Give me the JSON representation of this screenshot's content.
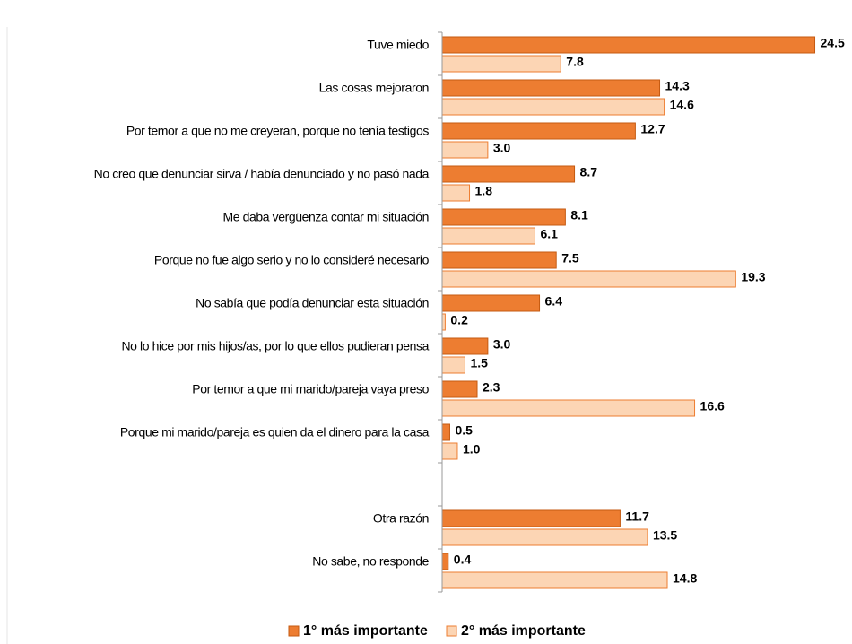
{
  "chart_data": {
    "type": "bar",
    "orientation": "horizontal",
    "categories": [
      "Tuve miedo",
      "Las cosas mejoraron",
      "Por temor a que no me creyeran, porque no tenía testigos",
      "No creo que denunciar sirva / había denunciado y no pasó nada",
      "Me daba vergüenza contar mi situación",
      "Porque no fue algo serio y no lo consideré necesario",
      "No sabía que podía denunciar esta situación",
      "No lo hice por mis hijos/as, por lo que ellos pudieran pensa",
      "Por temor a que mi marido/pareja vaya preso",
      "Porque mi marido/pareja es quien da el dinero para la casa",
      null,
      "Otra razón",
      "No sabe, no responde"
    ],
    "series": [
      {
        "name": "1° más importante",
        "color": "#ed7d31",
        "values": [
          24.5,
          14.3,
          12.7,
          8.7,
          8.1,
          7.5,
          6.4,
          3.0,
          2.3,
          0.5,
          null,
          11.7,
          0.4
        ],
        "value_labels": [
          "24.5",
          "14.3",
          "12.7",
          "8.7",
          "8.1",
          "7.5",
          "6.4",
          "3.0",
          "2.3",
          "0.5",
          null,
          "11.7",
          "0.4"
        ]
      },
      {
        "name": "2° más importante",
        "color": "#fcd5b4",
        "values": [
          7.8,
          14.6,
          3.0,
          1.8,
          6.1,
          19.3,
          0.2,
          1.5,
          16.6,
          1.0,
          null,
          13.5,
          14.8
        ],
        "value_labels": [
          "7.8",
          "14.6",
          "3.0",
          "1.8",
          "6.1",
          "19.3",
          "0.2",
          "1.5",
          "16.6",
          "1.0",
          null,
          "13.5",
          "14.8"
        ]
      }
    ],
    "xlim": [
      0,
      25
    ],
    "legend": "bottom"
  }
}
